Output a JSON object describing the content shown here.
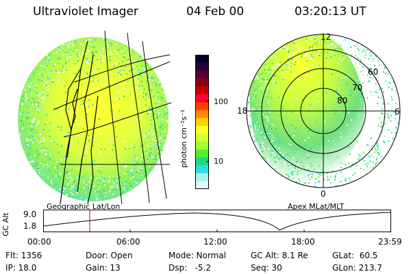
{
  "header": {
    "title": "Ultraviolet Imager",
    "date": "04 Feb 00",
    "time": "03:20:13 UT"
  },
  "left_panel": {
    "caption": "Geographic Lat/Lon"
  },
  "right_panel": {
    "caption": "Apex MLat/MLT",
    "mlt_labels": {
      "top": "12",
      "left": "18",
      "right": "6",
      "bottom": "0"
    },
    "lat_labels": [
      "60",
      "70",
      "80"
    ]
  },
  "colorbar": {
    "unit_label": "photon cm⁻²s⁻¹",
    "ticks": [
      "100",
      "10"
    ],
    "colors": [
      "#000030",
      "#2a003a",
      "#5a0030",
      "#8a0010",
      "#c80000",
      "#ff0040",
      "#ff4000",
      "#ff8a00",
      "#ffd000",
      "#ffff20",
      "#d8ff30",
      "#a0ff30",
      "#50f030",
      "#20d880",
      "#30e0e0",
      "#a8f0f0",
      "#e0f8ff"
    ]
  },
  "altitude_plot": {
    "ylabel": "GC Alt",
    "y_ticks": [
      "9.0",
      "1.8"
    ],
    "x_ticks": [
      "00:00",
      "06:00",
      "12:00",
      "18:00",
      "23:59"
    ],
    "cursor_color": "#c00000"
  },
  "status": {
    "flt": "Flt: 1356",
    "ip": "IP: 18.0",
    "door": "Door: Open",
    "gain": "Gain: 13",
    "mode": "Mode: Normal",
    "dsp": "Dsp:   -5.2",
    "gc_alt": "GC Alt: 8.1 Re",
    "seq": "Seq: 30",
    "glat": "GLat:  60.5",
    "glon": "GLon: 213.7"
  }
}
